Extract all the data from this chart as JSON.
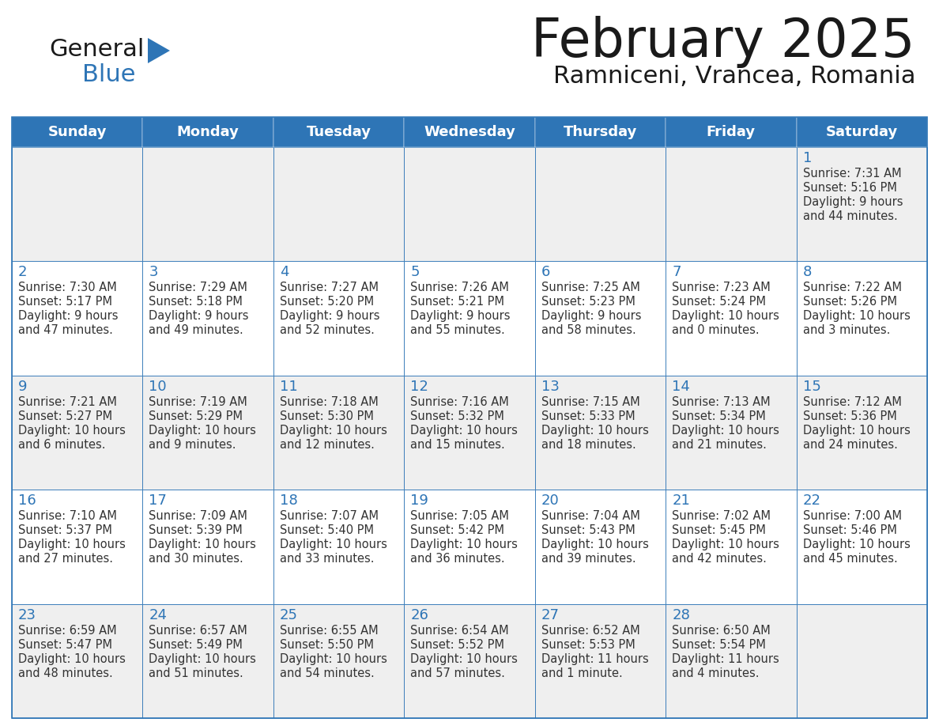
{
  "title": "February 2025",
  "subtitle": "Ramniceni, Vrancea, Romania",
  "header_color": "#2E75B6",
  "header_text_color": "#FFFFFF",
  "day_names": [
    "Sunday",
    "Monday",
    "Tuesday",
    "Wednesday",
    "Thursday",
    "Friday",
    "Saturday"
  ],
  "cell_bg_even": "#EFEFEF",
  "cell_bg_odd": "#FFFFFF",
  "border_color": "#2E75B6",
  "text_color": "#333333",
  "day_num_color": "#2E75B6",
  "logo_general_color": "#1a1a1a",
  "logo_blue_color": "#2E75B6",
  "weeks": [
    [
      {
        "day": null,
        "info": null
      },
      {
        "day": null,
        "info": null
      },
      {
        "day": null,
        "info": null
      },
      {
        "day": null,
        "info": null
      },
      {
        "day": null,
        "info": null
      },
      {
        "day": null,
        "info": null
      },
      {
        "day": 1,
        "info": "Sunrise: 7:31 AM\nSunset: 5:16 PM\nDaylight: 9 hours\nand 44 minutes."
      }
    ],
    [
      {
        "day": 2,
        "info": "Sunrise: 7:30 AM\nSunset: 5:17 PM\nDaylight: 9 hours\nand 47 minutes."
      },
      {
        "day": 3,
        "info": "Sunrise: 7:29 AM\nSunset: 5:18 PM\nDaylight: 9 hours\nand 49 minutes."
      },
      {
        "day": 4,
        "info": "Sunrise: 7:27 AM\nSunset: 5:20 PM\nDaylight: 9 hours\nand 52 minutes."
      },
      {
        "day": 5,
        "info": "Sunrise: 7:26 AM\nSunset: 5:21 PM\nDaylight: 9 hours\nand 55 minutes."
      },
      {
        "day": 6,
        "info": "Sunrise: 7:25 AM\nSunset: 5:23 PM\nDaylight: 9 hours\nand 58 minutes."
      },
      {
        "day": 7,
        "info": "Sunrise: 7:23 AM\nSunset: 5:24 PM\nDaylight: 10 hours\nand 0 minutes."
      },
      {
        "day": 8,
        "info": "Sunrise: 7:22 AM\nSunset: 5:26 PM\nDaylight: 10 hours\nand 3 minutes."
      }
    ],
    [
      {
        "day": 9,
        "info": "Sunrise: 7:21 AM\nSunset: 5:27 PM\nDaylight: 10 hours\nand 6 minutes."
      },
      {
        "day": 10,
        "info": "Sunrise: 7:19 AM\nSunset: 5:29 PM\nDaylight: 10 hours\nand 9 minutes."
      },
      {
        "day": 11,
        "info": "Sunrise: 7:18 AM\nSunset: 5:30 PM\nDaylight: 10 hours\nand 12 minutes."
      },
      {
        "day": 12,
        "info": "Sunrise: 7:16 AM\nSunset: 5:32 PM\nDaylight: 10 hours\nand 15 minutes."
      },
      {
        "day": 13,
        "info": "Sunrise: 7:15 AM\nSunset: 5:33 PM\nDaylight: 10 hours\nand 18 minutes."
      },
      {
        "day": 14,
        "info": "Sunrise: 7:13 AM\nSunset: 5:34 PM\nDaylight: 10 hours\nand 21 minutes."
      },
      {
        "day": 15,
        "info": "Sunrise: 7:12 AM\nSunset: 5:36 PM\nDaylight: 10 hours\nand 24 minutes."
      }
    ],
    [
      {
        "day": 16,
        "info": "Sunrise: 7:10 AM\nSunset: 5:37 PM\nDaylight: 10 hours\nand 27 minutes."
      },
      {
        "day": 17,
        "info": "Sunrise: 7:09 AM\nSunset: 5:39 PM\nDaylight: 10 hours\nand 30 minutes."
      },
      {
        "day": 18,
        "info": "Sunrise: 7:07 AM\nSunset: 5:40 PM\nDaylight: 10 hours\nand 33 minutes."
      },
      {
        "day": 19,
        "info": "Sunrise: 7:05 AM\nSunset: 5:42 PM\nDaylight: 10 hours\nand 36 minutes."
      },
      {
        "day": 20,
        "info": "Sunrise: 7:04 AM\nSunset: 5:43 PM\nDaylight: 10 hours\nand 39 minutes."
      },
      {
        "day": 21,
        "info": "Sunrise: 7:02 AM\nSunset: 5:45 PM\nDaylight: 10 hours\nand 42 minutes."
      },
      {
        "day": 22,
        "info": "Sunrise: 7:00 AM\nSunset: 5:46 PM\nDaylight: 10 hours\nand 45 minutes."
      }
    ],
    [
      {
        "day": 23,
        "info": "Sunrise: 6:59 AM\nSunset: 5:47 PM\nDaylight: 10 hours\nand 48 minutes."
      },
      {
        "day": 24,
        "info": "Sunrise: 6:57 AM\nSunset: 5:49 PM\nDaylight: 10 hours\nand 51 minutes."
      },
      {
        "day": 25,
        "info": "Sunrise: 6:55 AM\nSunset: 5:50 PM\nDaylight: 10 hours\nand 54 minutes."
      },
      {
        "day": 26,
        "info": "Sunrise: 6:54 AM\nSunset: 5:52 PM\nDaylight: 10 hours\nand 57 minutes."
      },
      {
        "day": 27,
        "info": "Sunrise: 6:52 AM\nSunset: 5:53 PM\nDaylight: 11 hours\nand 1 minute."
      },
      {
        "day": 28,
        "info": "Sunrise: 6:50 AM\nSunset: 5:54 PM\nDaylight: 11 hours\nand 4 minutes."
      },
      {
        "day": null,
        "info": null
      }
    ]
  ]
}
